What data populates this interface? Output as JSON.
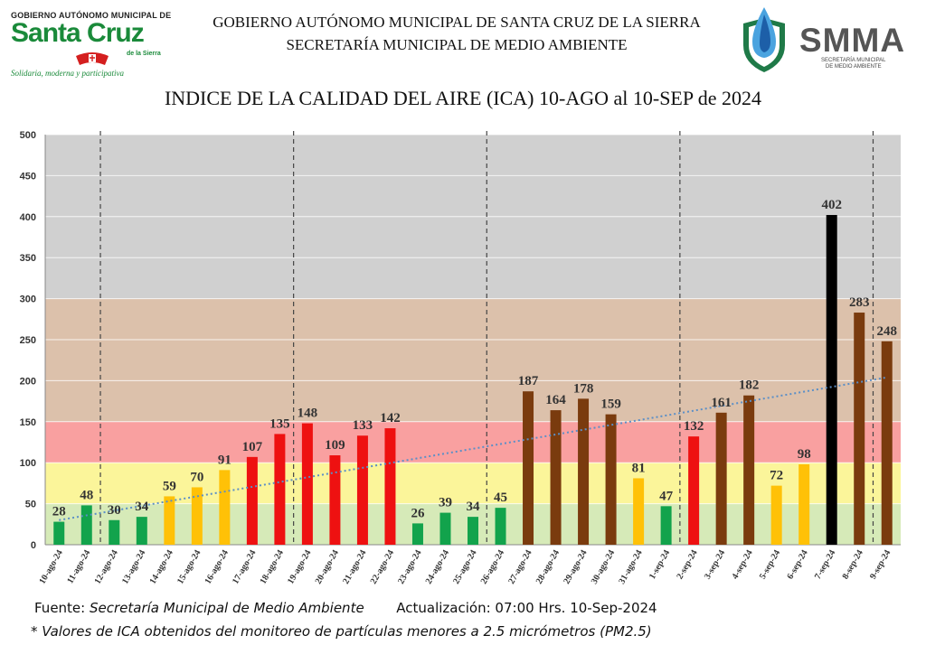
{
  "header": {
    "org_line1": "GOBIERNO AUTÓNOMO MUNICIPAL DE SANTA CRUZ DE LA SIERRA",
    "org_line2": "SECRETARÍA MUNICIPAL DE MEDIO AMBIENTE"
  },
  "logo_left": {
    "top_text": "GOBIERNO AUTÓNOMO MUNICIPAL DE",
    "name": "Santa Cruz",
    "sub": "de la Sierra",
    "slogan": "Solidaria, moderna y participativa",
    "color": "#1a8a3a"
  },
  "logo_right": {
    "name": "SMMA",
    "sub_line1": "SECRETARÍA MUNICIPAL",
    "sub_line2": "DE MEDIO AMBIENTE",
    "icon": "water-drop-shield-icon"
  },
  "chart_data": {
    "type": "bar",
    "title": "INDICE DE LA CALIDAD DEL AIRE (ICA) 10-AGO al 10-SEP de 2024",
    "categories": [
      "10-ago-24",
      "11-ago-24",
      "12-ago-24",
      "13-ago-24",
      "14-ago-24",
      "15-ago-24",
      "16-ago-24",
      "17-ago-24",
      "18-ago-24",
      "19-ago-24",
      "20-ago-24",
      "21-ago-24",
      "22-ago-24",
      "23-ago-24",
      "24-ago-24",
      "25-ago-24",
      "26-ago-24",
      "27-ago-24",
      "28-ago-24",
      "29-ago-24",
      "30-ago-24",
      "31-ago-24",
      "1-sep-24",
      "2-sep-24",
      "3-sep-24",
      "4-sep-24",
      "5-sep-24",
      "6-sep-24",
      "7-sep-24",
      "8-sep-24",
      "9-sep-24"
    ],
    "values": [
      28,
      48,
      30,
      34,
      59,
      70,
      91,
      107,
      135,
      148,
      109,
      133,
      142,
      26,
      39,
      34,
      45,
      187,
      164,
      178,
      159,
      81,
      47,
      132,
      161,
      182,
      72,
      98,
      402,
      283,
      248
    ],
    "ylim": [
      0,
      500
    ],
    "yticks": [
      0,
      50,
      100,
      150,
      200,
      250,
      300,
      350,
      400,
      450,
      500
    ],
    "bands": [
      {
        "from": 0,
        "to": 50,
        "color": "#d6eab8"
      },
      {
        "from": 50,
        "to": 100,
        "color": "#fbf59a"
      },
      {
        "from": 100,
        "to": 150,
        "color": "#f9a0a0"
      },
      {
        "from": 150,
        "to": 300,
        "color": "#dcc1ab"
      },
      {
        "from": 300,
        "to": 500,
        "color": "#d0d0d0"
      }
    ],
    "categories_colors": [
      {
        "max": 50,
        "color": "#12a34c"
      },
      {
        "max": 100,
        "color": "#ffc107"
      },
      {
        "max": 150,
        "color": "#ee1111"
      },
      {
        "max": 300,
        "color": "#7a3b0e"
      },
      {
        "max": 1000,
        "color": "#000000"
      }
    ],
    "week_dividers_after_index": [
      1,
      8,
      15,
      22,
      29
    ],
    "trendline": {
      "style": "dotted",
      "color": "#5b8fc7",
      "start": 30,
      "end": 204
    },
    "grid": true
  },
  "footer": {
    "source_label": "Fuente:",
    "source_value": "Secretaría Municipal de Medio Ambiente",
    "update_label": "Actualización:",
    "update_value": "07:00 Hrs.   10-Sep-2024",
    "note_prefix": "* Valores de ICA obtenidos del monitoreo de",
    "note_bold": "partículas menores a 2.5 micrómetros (PM2.5)"
  }
}
